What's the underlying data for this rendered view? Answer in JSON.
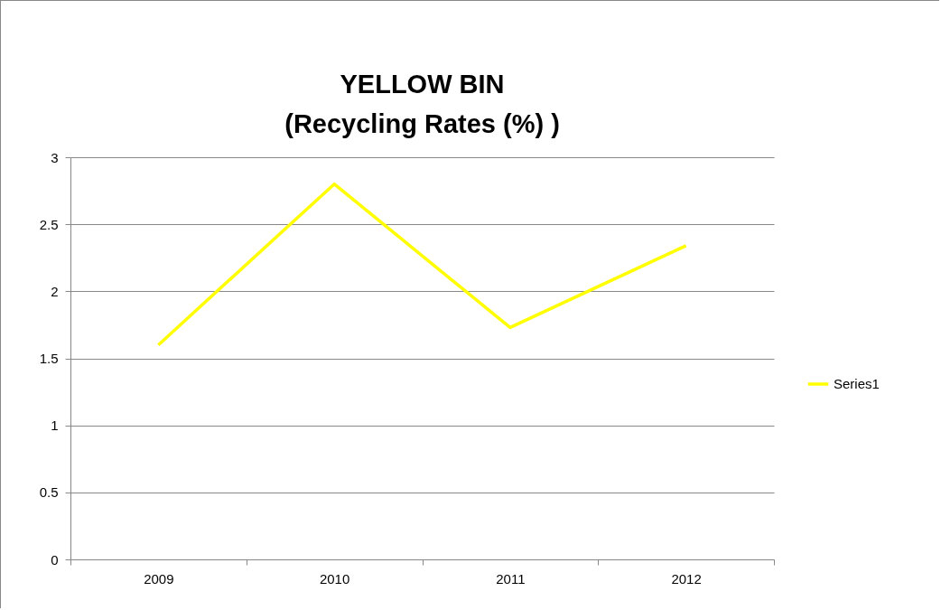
{
  "chart_data": {
    "type": "line",
    "title": "YELLOW BIN\n(Recycling Rates (%) )",
    "categories": [
      "2009",
      "2010",
      "2011",
      "2012"
    ],
    "series": [
      {
        "name": "Series1",
        "color": "#ffff00",
        "values": [
          1.6,
          2.8,
          1.73,
          2.34
        ]
      }
    ],
    "ylim": [
      0,
      3
    ],
    "yticks": [
      0,
      0.5,
      1,
      1.5,
      2,
      2.5,
      3
    ],
    "grid": "y",
    "legend": "right"
  }
}
